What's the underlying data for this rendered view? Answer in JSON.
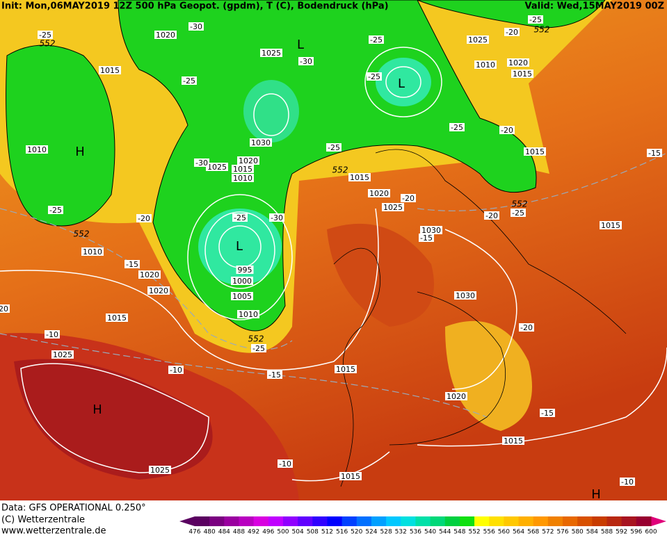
{
  "header": {
    "init": "Init: Mon,06MAY2019 12Z 500 hPa Geopot. (gpdm), T (C), Bodendruck (hPa)",
    "valid": "Valid: Wed,15MAY2019 00Z"
  },
  "map": {
    "isobar_labels": [
      "1020",
      "1025",
      "1015",
      "1010",
      "1020",
      "1015",
      "1025",
      "1010",
      "1030",
      "1025",
      "1020",
      "1015",
      "1010",
      "1015",
      "1020",
      "1025",
      "1030",
      "1015",
      "1015",
      "1010",
      "1020",
      "1020",
      "995",
      "1000",
      "1005",
      "1010",
      "1030",
      "1015",
      "1025",
      "1015",
      "1020",
      "1015",
      "1025",
      "1015"
    ],
    "temperature_labels": [
      "-25",
      "-30",
      "-25",
      "-20",
      "-30",
      "-25",
      "-25",
      "-25",
      "-25",
      "-20",
      "-25",
      "-30",
      "-20",
      "-20",
      "-25",
      "-15",
      "-25",
      "-20",
      "-25",
      "-30",
      "-15",
      "-20",
      "-10",
      "-25",
      "-15",
      "-10",
      "-15",
      "-10",
      "-10",
      "-15",
      "20"
    ],
    "contour_552_labels": [
      "552",
      "552",
      "552",
      "552",
      "552",
      "552"
    ],
    "pressure_centers": [
      "H",
      "L",
      "L",
      "L",
      "H",
      "H"
    ]
  },
  "footer": {
    "data": "Data: GFS OPERATIONAL 0.250°",
    "copyright": "(C) Wetterzentrale",
    "url": "www.wetterzentrale.de"
  },
  "colorbar": {
    "labels": [
      "476",
      "480",
      "484",
      "488",
      "492",
      "496",
      "500",
      "504",
      "508",
      "512",
      "516",
      "520",
      "524",
      "528",
      "532",
      "536",
      "540",
      "544",
      "548",
      "552",
      "556",
      "560",
      "564",
      "568",
      "572",
      "576",
      "580",
      "584",
      "588",
      "592",
      "596",
      "600"
    ],
    "colors": [
      "#5a0060",
      "#7a0080",
      "#9a00a0",
      "#b800c0",
      "#d800e0",
      "#c000ff",
      "#9000ff",
      "#6000ff",
      "#3000ff",
      "#0000ff",
      "#0040ff",
      "#0070ff",
      "#00a0ff",
      "#00c8ff",
      "#00e0e0",
      "#00e0a8",
      "#00d878",
      "#00d040",
      "#10e010",
      "#ffff00",
      "#ffe000",
      "#ffc800",
      "#ffb000",
      "#ff9800",
      "#f08000",
      "#e86800",
      "#d85000",
      "#c83c00",
      "#b82810",
      "#a81420",
      "#980030"
    ]
  }
}
